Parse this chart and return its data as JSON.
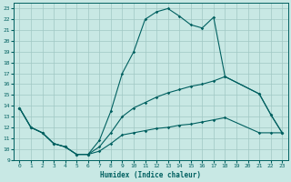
{
  "xlabel": "Humidex (Indice chaleur)",
  "ylabel": "",
  "xlim": [
    -0.5,
    23.5
  ],
  "ylim": [
    9,
    23.5
  ],
  "yticks": [
    9,
    10,
    11,
    12,
    13,
    14,
    15,
    16,
    17,
    18,
    19,
    20,
    21,
    22,
    23
  ],
  "xticks": [
    0,
    1,
    2,
    3,
    4,
    5,
    6,
    7,
    8,
    9,
    10,
    11,
    12,
    13,
    14,
    15,
    16,
    17,
    18,
    19,
    20,
    21,
    22,
    23
  ],
  "bg_color": "#c8e8e4",
  "grid_color": "#a0c8c4",
  "line_color": "#006060",
  "lines": [
    {
      "x": [
        0,
        1,
        2,
        3,
        4,
        5,
        6,
        7,
        8,
        9,
        10,
        11,
        12,
        13,
        14,
        15,
        16,
        17,
        18,
        21,
        22,
        23
      ],
      "y": [
        13.8,
        12.0,
        11.5,
        10.5,
        10.2,
        9.5,
        9.5,
        10.8,
        13.5,
        17.0,
        19.0,
        22.0,
        22.7,
        23.0,
        22.3,
        21.5,
        21.2,
        22.2,
        16.7,
        15.1,
        13.2,
        11.5
      ]
    },
    {
      "x": [
        0,
        1,
        2,
        3,
        4,
        5,
        6,
        7,
        8,
        9,
        10,
        11,
        12,
        13,
        14,
        15,
        16,
        17,
        18,
        21,
        22,
        23
      ],
      "y": [
        13.8,
        12.0,
        11.5,
        10.5,
        10.2,
        9.5,
        9.5,
        10.2,
        11.5,
        13.0,
        13.8,
        14.3,
        14.8,
        15.2,
        15.5,
        15.8,
        16.0,
        16.3,
        16.7,
        15.1,
        13.2,
        11.5
      ]
    },
    {
      "x": [
        0,
        1,
        2,
        3,
        4,
        5,
        6,
        7,
        8,
        9,
        10,
        11,
        12,
        13,
        14,
        15,
        16,
        17,
        18,
        21,
        22,
        23
      ],
      "y": [
        13.8,
        12.0,
        11.5,
        10.5,
        10.2,
        9.5,
        9.5,
        9.8,
        10.5,
        11.3,
        11.5,
        11.7,
        11.9,
        12.0,
        12.2,
        12.3,
        12.5,
        12.7,
        12.9,
        11.5,
        11.5,
        11.5
      ]
    }
  ]
}
